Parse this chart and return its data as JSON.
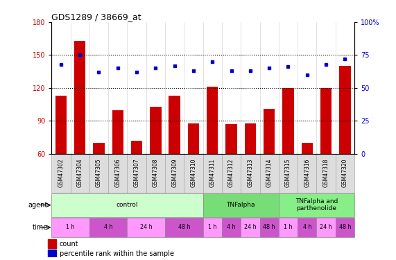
{
  "title": "GDS1289 / 38669_at",
  "samples": [
    "GSM47302",
    "GSM47304",
    "GSM47305",
    "GSM47306",
    "GSM47307",
    "GSM47308",
    "GSM47309",
    "GSM47310",
    "GSM47311",
    "GSM47312",
    "GSM47313",
    "GSM47314",
    "GSM47315",
    "GSM47316",
    "GSM47318",
    "GSM47320"
  ],
  "counts": [
    113,
    163,
    70,
    100,
    72,
    103,
    113,
    88,
    121,
    87,
    88,
    101,
    120,
    70,
    120,
    140
  ],
  "percentile_ranks": [
    68,
    75,
    62,
    65,
    62,
    65,
    67,
    63,
    70,
    63,
    63,
    65,
    66,
    60,
    68,
    72
  ],
  "ylim_left": [
    60,
    180
  ],
  "ylim_right": [
    0,
    100
  ],
  "yticks_left": [
    60,
    90,
    120,
    150,
    180
  ],
  "yticks_right": [
    0,
    25,
    50,
    75,
    100
  ],
  "bar_color": "#cc0000",
  "dot_color": "#0000cc",
  "agent_groups": [
    {
      "label": "control",
      "start": 0,
      "end": 7,
      "color": "#ccffcc"
    },
    {
      "label": "TNFalpha",
      "start": 8,
      "end": 11,
      "color": "#77dd77"
    },
    {
      "label": "TNFalpha and\nparthenolide",
      "start": 12,
      "end": 15,
      "color": "#88ee88"
    }
  ],
  "time_groups": [
    {
      "label": "1 h",
      "start": 0,
      "end": 1,
      "color": "#ff99ff"
    },
    {
      "label": "4 h",
      "start": 2,
      "end": 3,
      "color": "#cc55cc"
    },
    {
      "label": "24 h",
      "start": 4,
      "end": 5,
      "color": "#ff99ff"
    },
    {
      "label": "48 h",
      "start": 6,
      "end": 7,
      "color": "#cc55cc"
    },
    {
      "label": "1 h",
      "start": 8,
      "end": 8,
      "color": "#ff99ff"
    },
    {
      "label": "4 h",
      "start": 9,
      "end": 9,
      "color": "#cc55cc"
    },
    {
      "label": "24 h",
      "start": 10,
      "end": 10,
      "color": "#ff99ff"
    },
    {
      "label": "48 h",
      "start": 11,
      "end": 11,
      "color": "#cc55cc"
    },
    {
      "label": "1 h",
      "start": 12,
      "end": 12,
      "color": "#ff99ff"
    },
    {
      "label": "4 h",
      "start": 13,
      "end": 13,
      "color": "#cc55cc"
    },
    {
      "label": "24 h",
      "start": 14,
      "end": 14,
      "color": "#ff99ff"
    },
    {
      "label": "48 h",
      "start": 15,
      "end": 15,
      "color": "#cc55cc"
    }
  ],
  "xtick_bg": "#dddddd",
  "xtick_border": "#aaaaaa"
}
